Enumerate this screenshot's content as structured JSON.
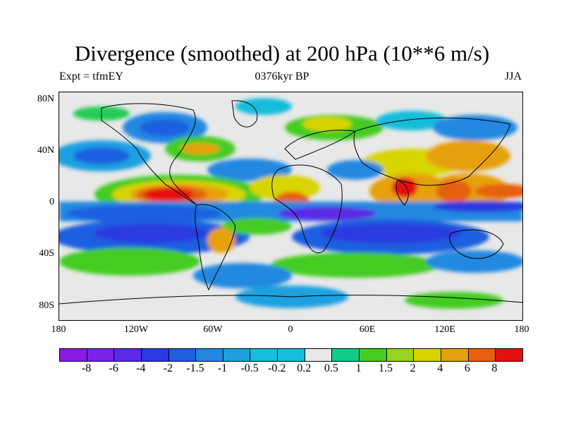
{
  "title": "Divergence (smoothed) at 200 hPa (10**6 m/s)",
  "subtitle_left": "Expt = tfmEY",
  "subtitle_center": "0376kyr BP",
  "subtitle_right": "JJA",
  "lat_ticks": [
    "80N",
    "40N",
    "0",
    "40S",
    "80S"
  ],
  "lon_ticks": [
    "180",
    "120W",
    "60W",
    "0",
    "60E",
    "120E",
    "180"
  ],
  "colorbar_labels": [
    "-8",
    "-6",
    "-4",
    "-2",
    "-1.5",
    "-1",
    "-0.5",
    "-0.2",
    "0.2",
    "0.5",
    "1",
    "1.5",
    "2",
    "4",
    "6",
    "8"
  ],
  "colorbar_colors": [
    "#8a1be0",
    "#7a22e8",
    "#5a2ce6",
    "#2a3ae0",
    "#1f5fe0",
    "#2288e0",
    "#1fa0e0",
    "#18bcdc",
    "#e8e8e8",
    "#11cc88",
    "#44cc22",
    "#99d422",
    "#d8d400",
    "#e6a010",
    "#e66010",
    "#e61010"
  ]
}
